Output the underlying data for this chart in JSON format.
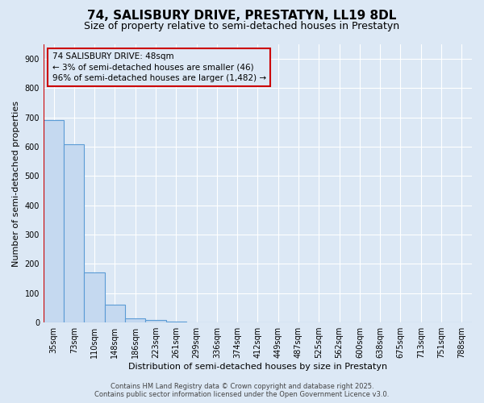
{
  "title1": "74, SALISBURY DRIVE, PRESTATYN, LL19 8DL",
  "title2": "Size of property relative to semi-detached houses in Prestatyn",
  "xlabel": "Distribution of semi-detached houses by size in Prestatyn",
  "ylabel": "Number of semi-detached properties",
  "bins": [
    "35sqm",
    "73sqm",
    "110sqm",
    "148sqm",
    "186sqm",
    "223sqm",
    "261sqm",
    "299sqm",
    "336sqm",
    "374sqm",
    "412sqm",
    "449sqm",
    "487sqm",
    "525sqm",
    "562sqm",
    "600sqm",
    "638sqm",
    "675sqm",
    "713sqm",
    "751sqm",
    "788sqm"
  ],
  "values": [
    690,
    610,
    170,
    60,
    15,
    8,
    2,
    0,
    0,
    0,
    0,
    0,
    0,
    0,
    0,
    0,
    0,
    0,
    0,
    0,
    0
  ],
  "bar_color": "#c5d9f0",
  "bar_edge_color": "#5a9bd5",
  "ylim": [
    0,
    950
  ],
  "yticks": [
    0,
    100,
    200,
    300,
    400,
    500,
    600,
    700,
    800,
    900
  ],
  "property_line_color": "#cc0000",
  "annotation_line1": "74 SALISBURY DRIVE: 48sqm",
  "annotation_line2": "← 3% of semi-detached houses are smaller (46)",
  "annotation_line3": "96% of semi-detached houses are larger (1,482) →",
  "annotation_box_color": "#cc0000",
  "footer1": "Contains HM Land Registry data © Crown copyright and database right 2025.",
  "footer2": "Contains public sector information licensed under the Open Government Licence v3.0.",
  "bg_color": "#dce8f5",
  "grid_color": "#ffffff",
  "title1_fontsize": 11,
  "title2_fontsize": 9,
  "xlabel_fontsize": 8,
  "ylabel_fontsize": 8,
  "tick_fontsize": 7,
  "annotation_fontsize": 7.5,
  "footer_fontsize": 6
}
